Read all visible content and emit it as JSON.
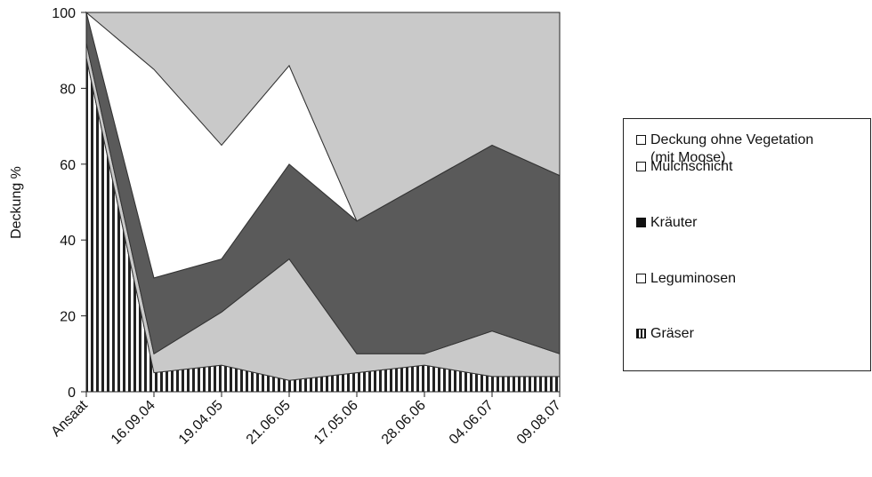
{
  "chart_data": {
    "type": "area",
    "stacked": true,
    "categories": [
      "Ansaat",
      "16.09.04",
      "19.04.05",
      "21.06.05",
      "17.05.06",
      "28.06.06",
      "04.06.07",
      "09.08.07"
    ],
    "ylabel": "Deckung %",
    "xlabel": "",
    "ylim": [
      0,
      100
    ],
    "yticks": [
      0,
      20,
      40,
      60,
      80,
      100
    ],
    "grid": false,
    "legend_position": "right",
    "series": [
      {
        "name": "Gräser",
        "values": [
          88,
          5,
          7,
          3,
          5,
          7,
          4,
          4
        ],
        "color": "#ffffff",
        "pattern": "vertical-stripes"
      },
      {
        "name": "Leguminosen",
        "values": [
          4,
          5,
          14,
          32,
          5,
          3,
          12,
          6
        ],
        "color": "#c9c9c9"
      },
      {
        "name": "Kräuter",
        "values": [
          8,
          20,
          14,
          25,
          35,
          45,
          49,
          47
        ],
        "color": "#5a5a5a"
      },
      {
        "name": "Mulchschicht",
        "values": [
          0,
          55,
          30,
          26,
          0,
          0,
          0,
          0
        ],
        "color": "#ffffff"
      },
      {
        "name": "Deckung ohne Vegetation\n(mit Moose)",
        "values": [
          0,
          15,
          35,
          14,
          55,
          45,
          35,
          43
        ],
        "color": "#c9c9c9"
      }
    ],
    "legend_order": [
      4,
      3,
      2,
      1,
      0
    ],
    "stripe_color": "#222222",
    "text_color": "#111111"
  }
}
